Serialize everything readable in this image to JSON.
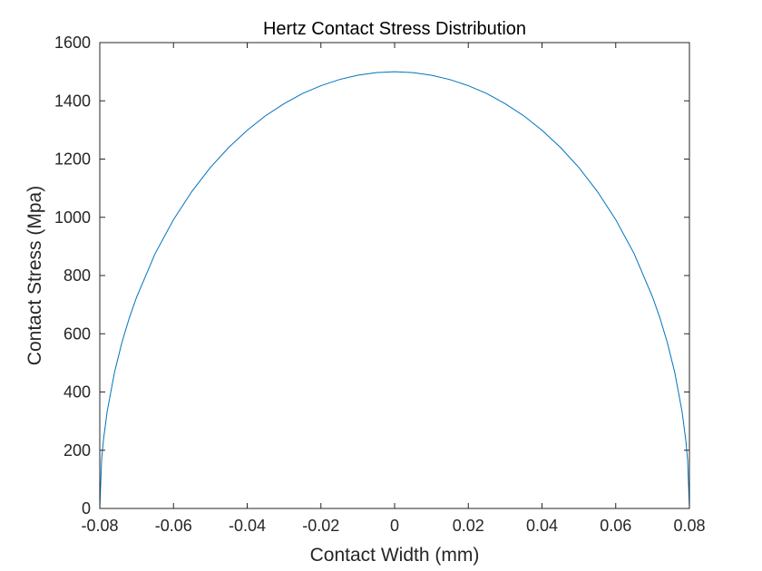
{
  "chart_data": {
    "type": "line",
    "title": "Hertz Contact Stress Distribution",
    "xlabel": "Contact Width (mm)",
    "ylabel": "Contact Stress (Mpa)",
    "xlim": [
      -0.08,
      0.08
    ],
    "ylim": [
      0,
      1600
    ],
    "xticks": [
      -0.08,
      -0.06,
      -0.04,
      -0.02,
      0,
      0.02,
      0.04,
      0.06,
      0.08
    ],
    "xtick_labels": [
      "-0.08",
      "-0.06",
      "-0.04",
      "-0.02",
      "0",
      "0.02",
      "0.04",
      "0.06",
      "0.08"
    ],
    "yticks": [
      0,
      200,
      400,
      600,
      800,
      1000,
      1200,
      1400,
      1600
    ],
    "ytick_labels": [
      "0",
      "200",
      "400",
      "600",
      "800",
      "1000",
      "1200",
      "1400",
      "1600"
    ],
    "grid": false,
    "legend": "none",
    "line_color": "#0072BD",
    "series": [
      {
        "x": [
          -0.08,
          -0.0795,
          -0.079,
          -0.078,
          -0.076,
          -0.074,
          -0.072,
          -0.07,
          -0.065,
          -0.06,
          -0.055,
          -0.05,
          -0.045,
          -0.04,
          -0.035,
          -0.03,
          -0.025,
          -0.02,
          -0.015,
          -0.01,
          -0.005,
          0,
          0.005,
          0.01,
          0.015,
          0.02,
          0.025,
          0.03,
          0.035,
          0.04,
          0.045,
          0.05,
          0.055,
          0.06,
          0.065,
          0.07,
          0.072,
          0.074,
          0.076,
          0.078,
          0.079,
          0.0795,
          0.08
        ],
        "y": [
          0,
          167,
          236,
          333,
          468,
          570,
          654,
          726,
          875,
          992,
          1089,
          1171,
          1240,
          1299,
          1349,
          1390,
          1425,
          1452,
          1473,
          1488,
          1497,
          1500,
          1497,
          1488,
          1473,
          1452,
          1425,
          1390,
          1349,
          1299,
          1240,
          1171,
          1089,
          992,
          875,
          726,
          654,
          570,
          468,
          333,
          236,
          167,
          0
        ]
      }
    ]
  }
}
